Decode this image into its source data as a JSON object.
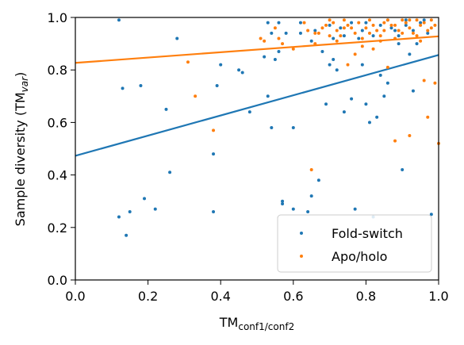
{
  "chart_data": {
    "type": "scatter",
    "title": "",
    "xlabel": "TM",
    "xlabel_sub": "conf1/conf2",
    "ylabel": "Sample diversity (TM",
    "ylabel_sub": "var",
    "ylabel_close": ")",
    "xlim": [
      0.0,
      1.0
    ],
    "ylim": [
      0.0,
      1.0
    ],
    "xticks": [
      "0.0",
      "0.2",
      "0.4",
      "0.6",
      "0.8",
      "1.0"
    ],
    "yticks": [
      "0.0",
      "0.2",
      "0.4",
      "0.6",
      "0.8",
      "1.0"
    ],
    "grid": false,
    "legend_position": "lower-right",
    "series": [
      {
        "name": "Fold-switch",
        "color": "#1f77b4",
        "points": [
          [
            0.12,
            0.99
          ],
          [
            0.13,
            0.73
          ],
          [
            0.18,
            0.74
          ],
          [
            0.28,
            0.92
          ],
          [
            0.25,
            0.65
          ],
          [
            0.26,
            0.41
          ],
          [
            0.12,
            0.24
          ],
          [
            0.15,
            0.26
          ],
          [
            0.14,
            0.17
          ],
          [
            0.19,
            0.31
          ],
          [
            0.22,
            0.27
          ],
          [
            0.38,
            0.26
          ],
          [
            0.38,
            0.48
          ],
          [
            0.39,
            0.74
          ],
          [
            0.4,
            0.82
          ],
          [
            0.45,
            0.8
          ],
          [
            0.46,
            0.79
          ],
          [
            0.48,
            0.64
          ],
          [
            0.52,
            0.85
          ],
          [
            0.53,
            0.7
          ],
          [
            0.54,
            0.58
          ],
          [
            0.55,
            0.84
          ],
          [
            0.56,
            0.87
          ],
          [
            0.57,
            0.3
          ],
          [
            0.57,
            0.29
          ],
          [
            0.6,
            0.58
          ],
          [
            0.6,
            0.27
          ],
          [
            0.62,
            0.94
          ],
          [
            0.64,
            0.26
          ],
          [
            0.65,
            0.32
          ],
          [
            0.67,
            0.38
          ],
          [
            0.68,
            0.87
          ],
          [
            0.69,
            0.67
          ],
          [
            0.7,
            0.82
          ],
          [
            0.71,
            0.84
          ],
          [
            0.72,
            0.8
          ],
          [
            0.74,
            0.64
          ],
          [
            0.74,
            0.93
          ],
          [
            0.76,
            0.69
          ],
          [
            0.77,
            0.27
          ],
          [
            0.78,
            0.92
          ],
          [
            0.79,
            0.82
          ],
          [
            0.8,
            0.67
          ],
          [
            0.81,
            0.6
          ],
          [
            0.82,
            0.24
          ],
          [
            0.83,
            0.62
          ],
          [
            0.84,
            0.78
          ],
          [
            0.85,
            0.7
          ],
          [
            0.86,
            0.75
          ],
          [
            0.88,
            0.95
          ],
          [
            0.89,
            0.9
          ],
          [
            0.9,
            0.42
          ],
          [
            0.91,
            0.97
          ],
          [
            0.92,
            0.86
          ],
          [
            0.93,
            0.72
          ],
          [
            0.95,
            0.98
          ],
          [
            0.97,
            0.94
          ],
          [
            0.98,
            0.25
          ],
          [
            0.53,
            0.98
          ],
          [
            0.56,
            0.98
          ],
          [
            0.58,
            0.94
          ],
          [
            0.62,
            0.98
          ],
          [
            0.66,
            0.95
          ],
          [
            0.7,
            0.97
          ],
          [
            0.73,
            0.96
          ],
          [
            0.76,
            0.98
          ],
          [
            0.79,
            0.95
          ],
          [
            0.82,
            0.93
          ],
          [
            0.84,
            0.97
          ],
          [
            0.86,
            0.99
          ],
          [
            0.87,
            0.96
          ],
          [
            0.89,
            0.93
          ],
          [
            0.91,
            0.99
          ],
          [
            0.93,
            0.95
          ],
          [
            0.94,
            0.9
          ],
          [
            0.96,
            0.99
          ],
          [
            0.8,
            0.98
          ],
          [
            0.71,
            0.92
          ],
          [
            0.65,
            0.91
          ],
          [
            0.54,
            0.94
          ]
        ]
      },
      {
        "name": "Apo/holo",
        "color": "#ff7f0e",
        "points": [
          [
            0.31,
            0.83
          ],
          [
            0.33,
            0.7
          ],
          [
            0.38,
            0.57
          ],
          [
            0.51,
            0.92
          ],
          [
            0.52,
            0.91
          ],
          [
            0.55,
            0.96
          ],
          [
            0.56,
            0.92
          ],
          [
            0.57,
            0.9
          ],
          [
            0.63,
            0.98
          ],
          [
            0.64,
            0.95
          ],
          [
            0.65,
            0.42
          ],
          [
            0.66,
            0.94
          ],
          [
            0.67,
            0.94
          ],
          [
            0.68,
            0.96
          ],
          [
            0.69,
            0.97
          ],
          [
            0.7,
            0.99
          ],
          [
            0.71,
            0.98
          ],
          [
            0.72,
            0.95
          ],
          [
            0.73,
            0.93
          ],
          [
            0.74,
            0.99
          ],
          [
            0.75,
            0.97
          ],
          [
            0.76,
            0.96
          ],
          [
            0.77,
            0.94
          ],
          [
            0.78,
            0.98
          ],
          [
            0.79,
            0.92
          ],
          [
            0.8,
            0.96
          ],
          [
            0.81,
            0.99
          ],
          [
            0.82,
            0.97
          ],
          [
            0.83,
            0.95
          ],
          [
            0.84,
            0.93
          ],
          [
            0.85,
            0.98
          ],
          [
            0.86,
            0.99
          ],
          [
            0.86,
            0.81
          ],
          [
            0.87,
            0.97
          ],
          [
            0.88,
            0.53
          ],
          [
            0.89,
            0.95
          ],
          [
            0.9,
            0.99
          ],
          [
            0.91,
            0.98
          ],
          [
            0.92,
            0.55
          ],
          [
            0.92,
            0.96
          ],
          [
            0.93,
            0.94
          ],
          [
            0.94,
            0.99
          ],
          [
            0.95,
            0.97
          ],
          [
            0.96,
            0.76
          ],
          [
            0.96,
            0.98
          ],
          [
            0.97,
            0.62
          ],
          [
            0.98,
            0.99
          ],
          [
            0.99,
            0.75
          ],
          [
            1.0,
            0.52
          ],
          [
            0.99,
            0.97
          ],
          [
            0.75,
            0.82
          ],
          [
            0.79,
            0.89
          ],
          [
            0.82,
            0.88
          ],
          [
            0.84,
            0.91
          ],
          [
            0.88,
            0.92
          ],
          [
            0.9,
            0.94
          ],
          [
            0.94,
            0.93
          ],
          [
            0.97,
            0.95
          ],
          [
            0.6,
            0.88
          ],
          [
            0.66,
            0.9
          ],
          [
            0.72,
            0.91
          ],
          [
            0.77,
            0.86
          ],
          [
            0.81,
            0.94
          ],
          [
            0.85,
            0.95
          ],
          [
            0.88,
            0.97
          ],
          [
            0.92,
            0.99
          ],
          [
            0.95,
            0.91
          ],
          [
            0.98,
            0.96
          ],
          [
            0.7,
            0.93
          ],
          [
            0.74,
            0.96
          ]
        ]
      }
    ],
    "trendlines": [
      {
        "series": "Fold-switch",
        "color": "#1f77b4",
        "x": [
          0.0,
          1.0
        ],
        "y": [
          0.473,
          0.857
        ]
      },
      {
        "series": "Apo/holo",
        "color": "#ff7f0e",
        "x": [
          0.0,
          1.0
        ],
        "y": [
          0.827,
          0.928
        ]
      }
    ]
  }
}
